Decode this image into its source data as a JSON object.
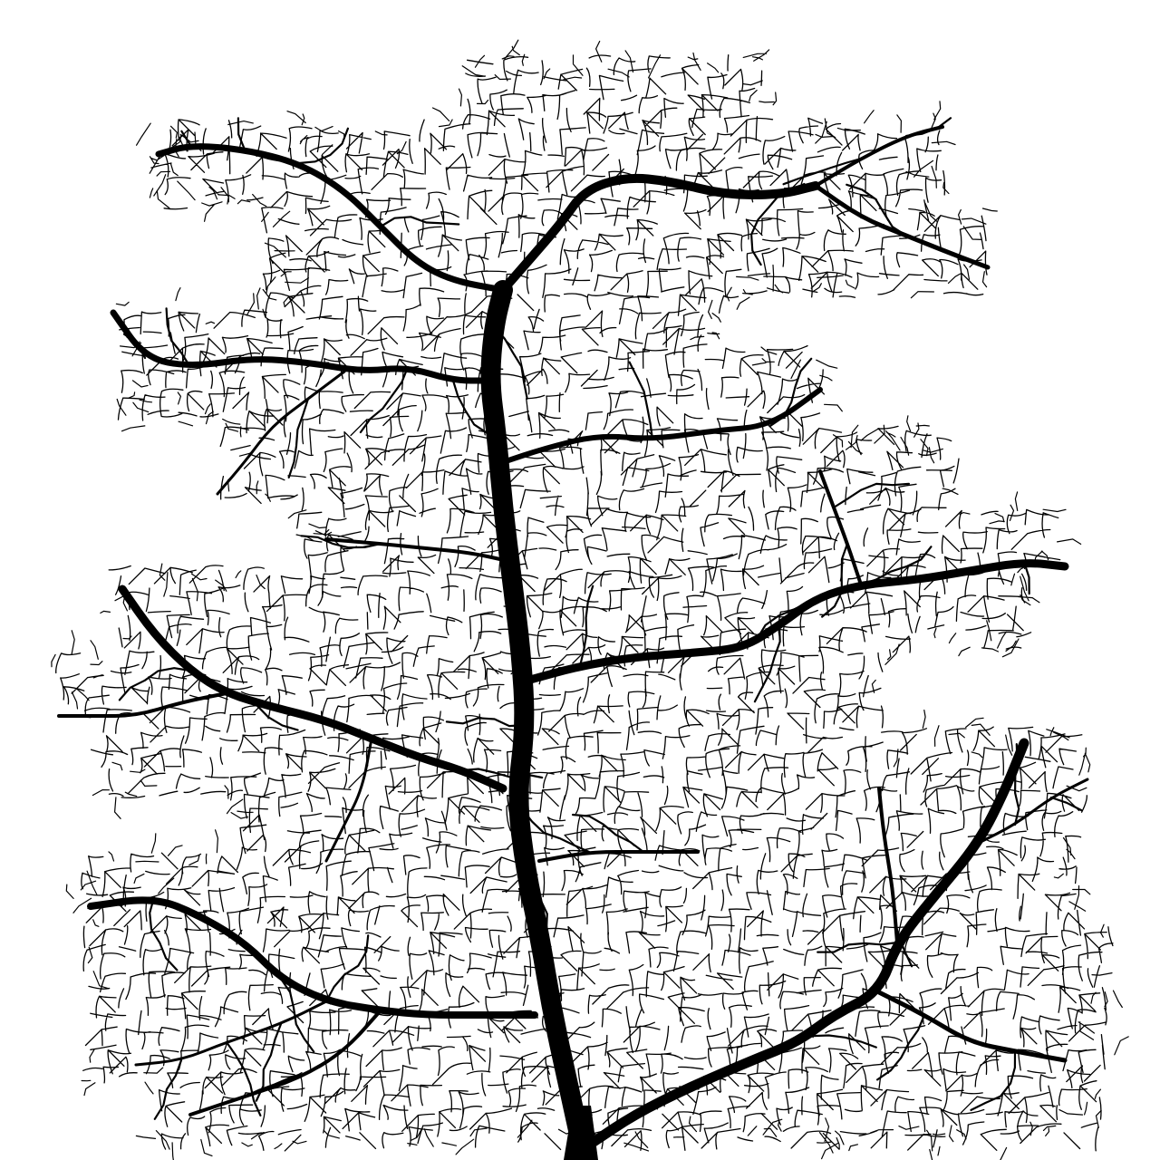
{
  "image": {
    "subject": "venation-tree",
    "background_color": "#ffffff",
    "ink_color": "#000000"
  }
}
